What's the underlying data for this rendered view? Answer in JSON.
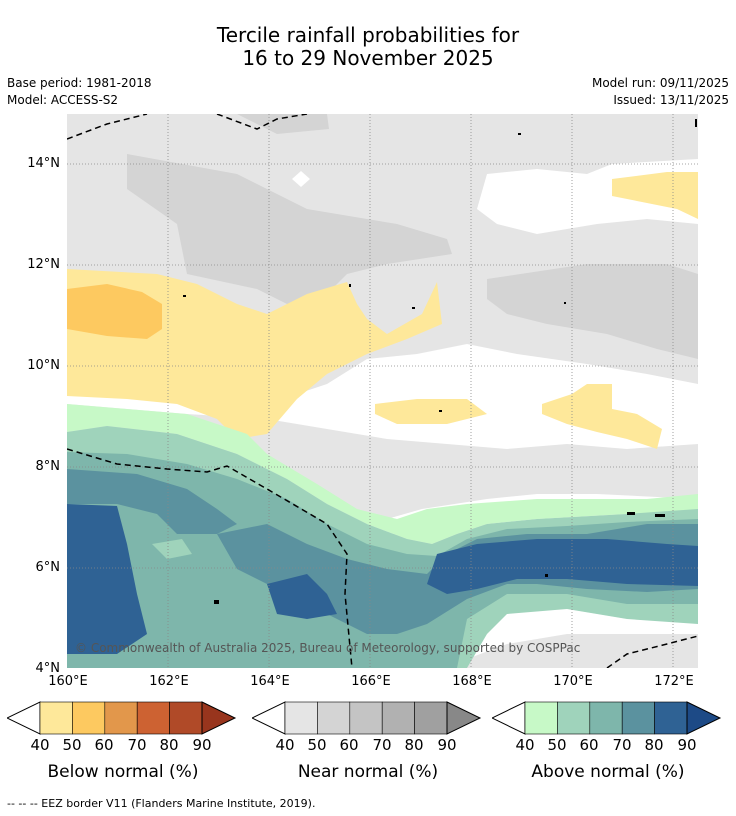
{
  "header": {
    "title_line1": "Tercile rainfall probabilities for",
    "title_line2": "16 to 29 November 2025",
    "base_period": "Base period: 1981-2018",
    "model": "Model: ACCESS-S2",
    "model_run": "Model run: 09/11/2025",
    "issued": "Issued: 13/11/2025"
  },
  "map": {
    "lat_labels": [
      "14°N",
      "12°N",
      "10°N",
      "8°N",
      "6°N",
      "4°N"
    ],
    "lon_labels": [
      "160°E",
      "162°E",
      "164°E",
      "166°E",
      "168°E",
      "170°E",
      "172°E"
    ],
    "copyright": "© Commonwealth of Australia 2025, Bureau of Meteorology, supported by COSPPac"
  },
  "legend": {
    "below": {
      "label": "Below normal (%)",
      "ticks": [
        "40",
        "50",
        "60",
        "70",
        "80",
        "90"
      ],
      "colors": [
        "#fee89a",
        "#fdc960",
        "#e2974b",
        "#cd6232",
        "#b04a28",
        "#98351d"
      ]
    },
    "near": {
      "label": "Near normal (%)",
      "ticks": [
        "40",
        "50",
        "60",
        "70",
        "80",
        "90"
      ],
      "colors": [
        "#e5e5e5",
        "#d4d4d4",
        "#c4c4c4",
        "#b1b1b1",
        "#a0a0a0",
        "#888888"
      ]
    },
    "above": {
      "label": "Above normal (%)",
      "ticks": [
        "40",
        "50",
        "60",
        "70",
        "80",
        "90"
      ],
      "colors": [
        "#c7f9c7",
        "#9fd3bb",
        "#7eb6ab",
        "#5b929f",
        "#2f6294",
        "#1d4a86"
      ]
    }
  },
  "footnote": "-- -- -- EEZ border V11 (Flanders Marine Institute, 2019)."
}
